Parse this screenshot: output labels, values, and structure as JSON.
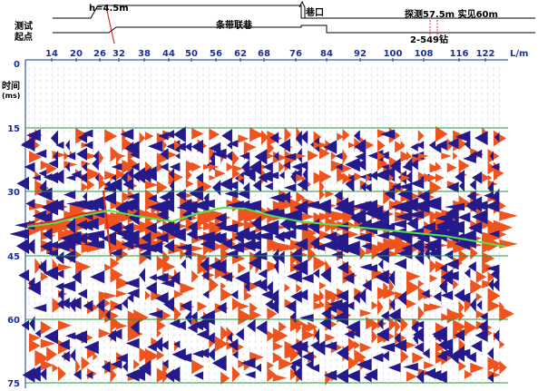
{
  "header": {
    "depth_label": "h=4.5m",
    "start_label_line1": "测试",
    "start_label_line2": "起点",
    "roadway_label": "条带联巷",
    "crossing_label": "巷口",
    "detection_label": "探测57.5m  实见60m",
    "borehole_label": "2-549钻"
  },
  "x_axis": {
    "ticks": [
      "14",
      "20",
      "26",
      "32",
      "38",
      "44",
      "50",
      "56",
      "62",
      "68",
      "76",
      "84",
      "92",
      "100",
      "108",
      "116",
      "122"
    ],
    "unit": "L/m"
  },
  "y_axis": {
    "label_line1": "时间",
    "label_line2": "(ms)",
    "ticks": [
      "0",
      "15",
      "30",
      "45",
      "60",
      "75"
    ]
  },
  "colors": {
    "positive": "#f0541e",
    "negative": "#241a8c",
    "gridline": "#1f9a3b",
    "marker": "#e02a20",
    "interpretation_line": "#57e04a",
    "axis_text": "#1a2fa0"
  }
}
